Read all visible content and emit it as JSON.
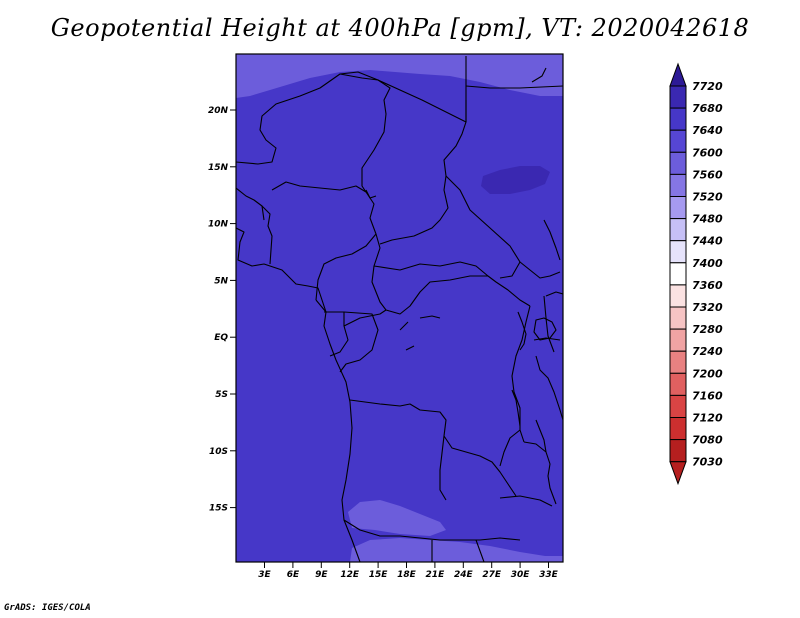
{
  "title": "Geopotential Height at 400hPa [gpm], VT: 2020042618",
  "footer": "GrADS: IGES/COLA",
  "map": {
    "lat_labels": [
      "20N",
      "15N",
      "10N",
      "5N",
      "EQ",
      "5S",
      "10S",
      "15S"
    ],
    "lon_labels": [
      "3E",
      "6E",
      "9E",
      "12E",
      "15E",
      "18E",
      "21E",
      "24E",
      "27E",
      "30E",
      "33E"
    ],
    "fill_colors": {
      "base": "#4637c8",
      "lighter": "#6c5ddb",
      "darker": "#3a28b1"
    }
  },
  "colorbar": {
    "labels": [
      "7720",
      "7680",
      "7640",
      "7600",
      "7560",
      "7520",
      "7480",
      "7440",
      "7400",
      "7360",
      "7320",
      "7280",
      "7240",
      "7200",
      "7160",
      "7120",
      "7080",
      "7030"
    ],
    "colors": [
      "#2d1a96",
      "#3a28b1",
      "#4637c8",
      "#5646d4",
      "#6c5ddb",
      "#8576e4",
      "#a69af0",
      "#c6c0f6",
      "#e6e3fb",
      "#ffffff",
      "#fbe2e2",
      "#f6c4c4",
      "#f0a3a3",
      "#e88181",
      "#e06060",
      "#d94444",
      "#cc2f2f",
      "#b51f1f"
    ]
  }
}
